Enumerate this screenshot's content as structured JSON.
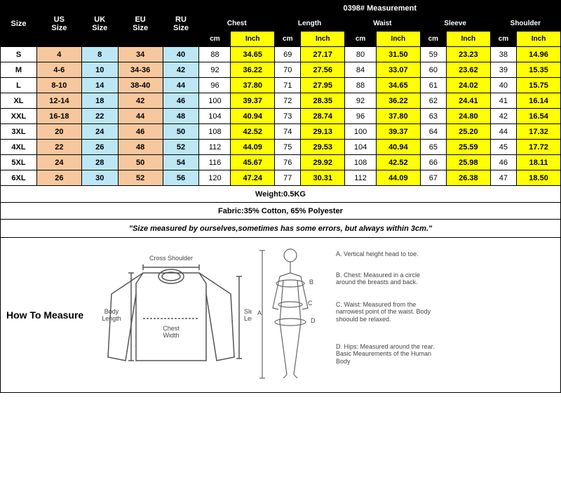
{
  "header": {
    "size": "Size",
    "us": "US\nSize",
    "uk": "UK\nSize",
    "eu": "EU\nSize",
    "ru": "RU\nSize",
    "measurement": "0398# Measurement",
    "chest": "Chest",
    "length": "Length",
    "waist": "Waist",
    "sleeve": "Sleeve",
    "shoulder": "Shoulder",
    "cm": "cm",
    "inch": "Inch"
  },
  "colors": {
    "us_col": "#f7c89e",
    "uk_col": "#bde7f5",
    "eu_col": "#f7c89e",
    "ru_col": "#bde7f5",
    "inch_col": "#ffff00",
    "black": "#000000",
    "white": "#ffffff"
  },
  "rows": [
    {
      "size": "S",
      "us": "4",
      "uk": "8",
      "eu": "34",
      "ru": "40",
      "chest_cm": "88",
      "chest_in": "34.65",
      "len_cm": "69",
      "len_in": "27.17",
      "waist_cm": "80",
      "waist_in": "31.50",
      "slv_cm": "59",
      "slv_in": "23.23",
      "sh_cm": "38",
      "sh_in": "14.96"
    },
    {
      "size": "M",
      "us": "4-6",
      "uk": "10",
      "eu": "34-36",
      "ru": "42",
      "chest_cm": "92",
      "chest_in": "36.22",
      "len_cm": "70",
      "len_in": "27.56",
      "waist_cm": "84",
      "waist_in": "33.07",
      "slv_cm": "60",
      "slv_in": "23.62",
      "sh_cm": "39",
      "sh_in": "15.35"
    },
    {
      "size": "L",
      "us": "8-10",
      "uk": "14",
      "eu": "38-40",
      "ru": "44",
      "chest_cm": "96",
      "chest_in": "37.80",
      "len_cm": "71",
      "len_in": "27.95",
      "waist_cm": "88",
      "waist_in": "34.65",
      "slv_cm": "61",
      "slv_in": "24.02",
      "sh_cm": "40",
      "sh_in": "15.75"
    },
    {
      "size": "XL",
      "us": "12-14",
      "uk": "18",
      "eu": "42",
      "ru": "46",
      "chest_cm": "100",
      "chest_in": "39.37",
      "len_cm": "72",
      "len_in": "28.35",
      "waist_cm": "92",
      "waist_in": "36.22",
      "slv_cm": "62",
      "slv_in": "24.41",
      "sh_cm": "41",
      "sh_in": "16.14"
    },
    {
      "size": "XXL",
      "us": "16-18",
      "uk": "22",
      "eu": "44",
      "ru": "48",
      "chest_cm": "104",
      "chest_in": "40.94",
      "len_cm": "73",
      "len_in": "28.74",
      "waist_cm": "96",
      "waist_in": "37.80",
      "slv_cm": "63",
      "slv_in": "24.80",
      "sh_cm": "42",
      "sh_in": "16.54"
    },
    {
      "size": "3XL",
      "us": "20",
      "uk": "24",
      "eu": "46",
      "ru": "50",
      "chest_cm": "108",
      "chest_in": "42.52",
      "len_cm": "74",
      "len_in": "29.13",
      "waist_cm": "100",
      "waist_in": "39.37",
      "slv_cm": "64",
      "slv_in": "25.20",
      "sh_cm": "44",
      "sh_in": "17.32"
    },
    {
      "size": "4XL",
      "us": "22",
      "uk": "26",
      "eu": "48",
      "ru": "52",
      "chest_cm": "112",
      "chest_in": "44.09",
      "len_cm": "75",
      "len_in": "29.53",
      "waist_cm": "104",
      "waist_in": "40.94",
      "slv_cm": "65",
      "slv_in": "25.59",
      "sh_cm": "45",
      "sh_in": "17.72"
    },
    {
      "size": "5XL",
      "us": "24",
      "uk": "28",
      "eu": "50",
      "ru": "54",
      "chest_cm": "116",
      "chest_in": "45.67",
      "len_cm": "76",
      "len_in": "29.92",
      "waist_cm": "108",
      "waist_in": "42.52",
      "slv_cm": "66",
      "slv_in": "25.98",
      "sh_cm": "46",
      "sh_in": "18.11"
    },
    {
      "size": "6XL",
      "us": "26",
      "uk": "30",
      "eu": "52",
      "ru": "56",
      "chest_cm": "120",
      "chest_in": "47.24",
      "len_cm": "77",
      "len_in": "30.31",
      "waist_cm": "112",
      "waist_in": "44.09",
      "slv_cm": "67",
      "slv_in": "26.38",
      "sh_cm": "47",
      "sh_in": "18.50"
    }
  ],
  "info": {
    "weight": "Weight:0.5KG",
    "fabric": "Fabric:35% Cotton, 65% Polyester",
    "note": "\"Size measured by ourselves,sometimes has some errors, but always within 3cm.\""
  },
  "howto": {
    "title": "How To Measure",
    "shirt_labels": {
      "cross_shoulder": "Cross\nShoulder",
      "body_length": "Body\nLength",
      "chest_width": "Chest\nWidth",
      "sleeve_length": "Sleeve\nLength"
    },
    "body_labels": {
      "a": "A. Vertical height head to toe.",
      "b": "B. Chest: Measured in a circle around the breasts and back.",
      "c": "C. Waist: Measured from the narrowest point of the waist. Body shoould be relaxed.",
      "d": "D. Hips: Measured around the rear. Basic Meaurements of the Human Body"
    }
  }
}
